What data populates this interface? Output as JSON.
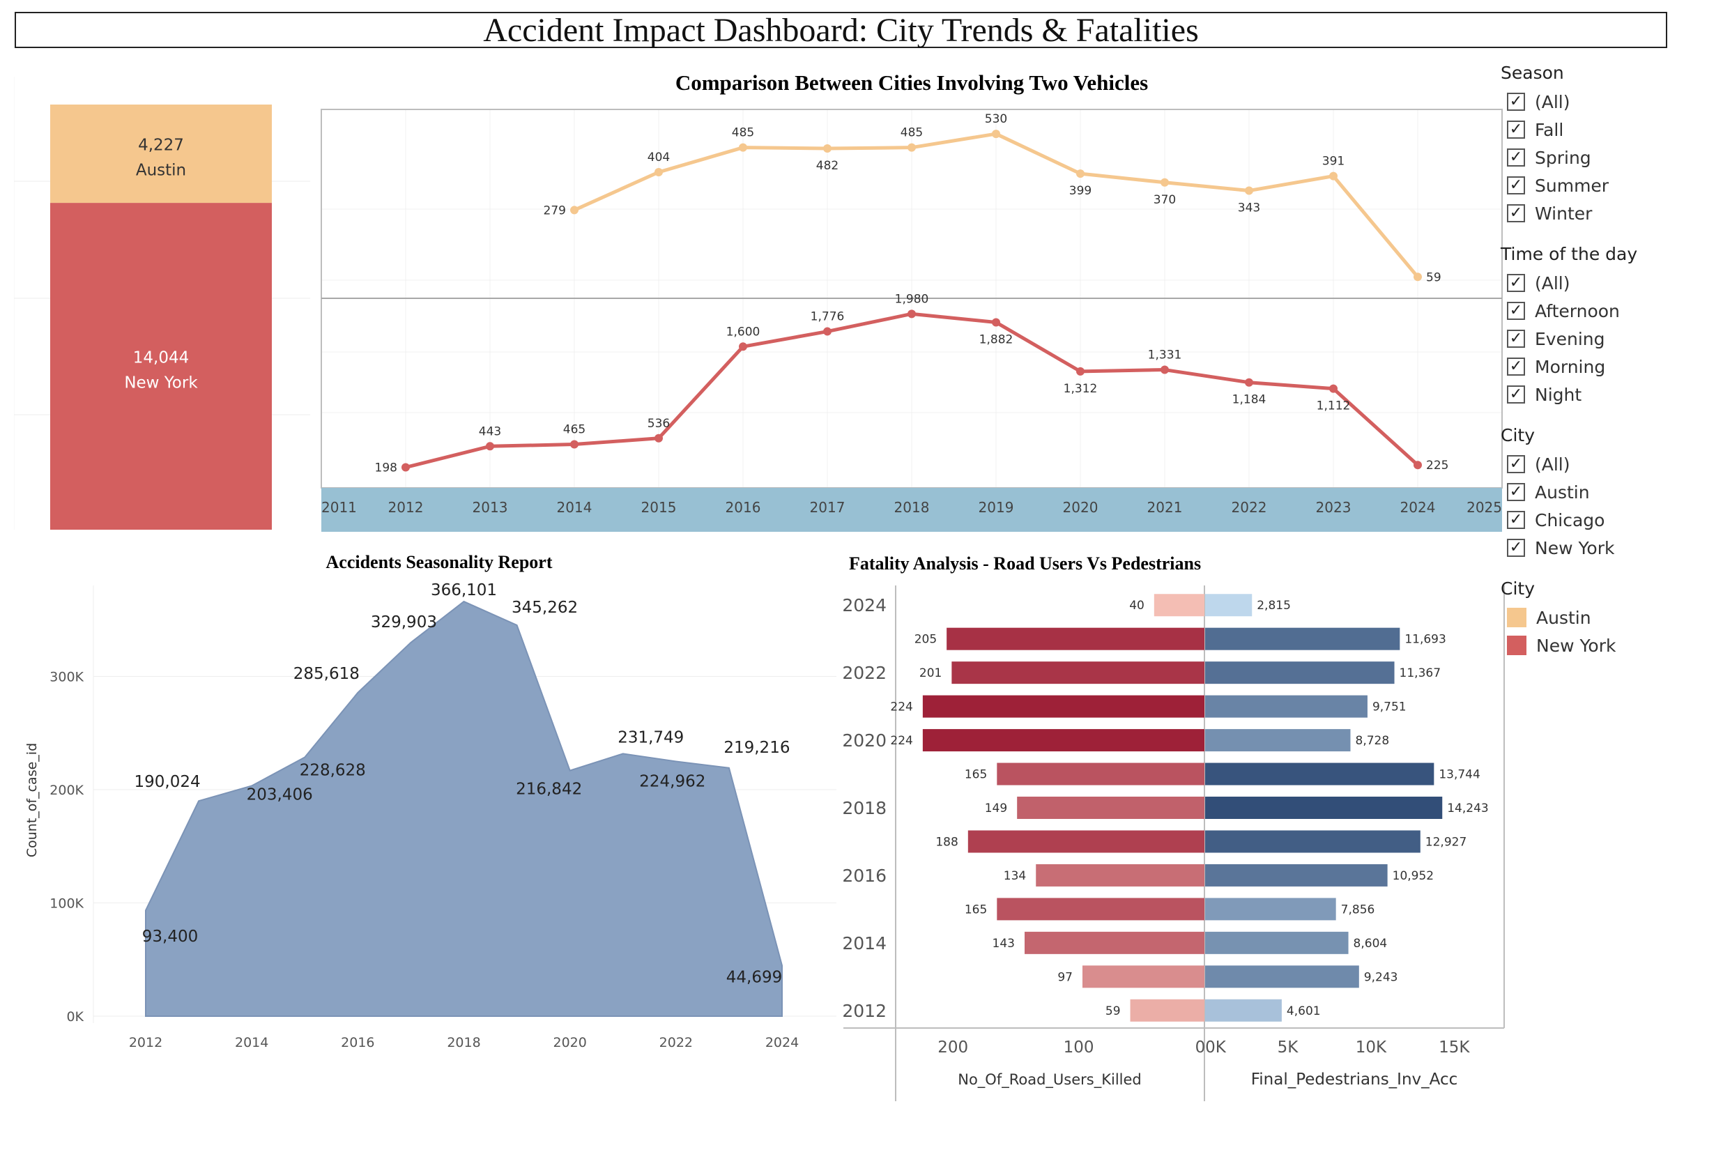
{
  "dashboard_title": "Accident Impact Dashboard: City Trends & Fatalities",
  "filters": {
    "season": {
      "title": "Season",
      "items": [
        "(All)",
        "Fall",
        "Spring",
        "Summer",
        "Winter"
      ]
    },
    "time_of_day": {
      "title": "Time of the day",
      "items": [
        "(All)",
        "Afternoon",
        "Evening",
        "Morning",
        "Night"
      ]
    },
    "city": {
      "title": "City",
      "items": [
        "(All)",
        "Austin",
        "Chicago",
        "New York"
      ]
    },
    "check_glyph": "✓"
  },
  "legend": {
    "title": "City",
    "items": [
      {
        "label": "Austin",
        "color": "#f5c78e"
      },
      {
        "label": "New York",
        "color": "#d35f5f"
      }
    ]
  },
  "chart_data": [
    {
      "id": "city_totals",
      "type": "bar",
      "stacked": true,
      "categories": [
        "Austin",
        "New York"
      ],
      "values": [
        4227,
        14044
      ],
      "value_labels": [
        "4,227",
        "14,044"
      ],
      "colors": [
        "#f5c78e",
        "#d35f5f"
      ]
    },
    {
      "id": "two_vehicle_comparison",
      "type": "line",
      "title": "Comparison Between Cities Involving Two Vehicles",
      "x_ticks": [
        "2011",
        "2012",
        "2013",
        "2014",
        "2015",
        "2016",
        "2017",
        "2018",
        "2019",
        "2020",
        "2021",
        "2022",
        "2023",
        "2024",
        "2025"
      ],
      "xlim": [
        2011,
        2025
      ],
      "series": [
        {
          "name": "Austin",
          "color": "#f5c78e",
          "x": [
            2014,
            2015,
            2016,
            2017,
            2018,
            2019,
            2020,
            2021,
            2022,
            2023,
            2024
          ],
          "values": [
            279,
            404,
            485,
            482,
            485,
            530,
            399,
            370,
            343,
            391,
            59
          ],
          "labels": [
            "279",
            "404",
            "485",
            "482",
            "485",
            "530",
            "399",
            "370",
            "343",
            "391",
            "59"
          ]
        },
        {
          "name": "New York",
          "color": "#d35f5f",
          "x": [
            2012,
            2013,
            2014,
            2015,
            2016,
            2017,
            2018,
            2019,
            2020,
            2021,
            2022,
            2023,
            2024
          ],
          "values": [
            198,
            443,
            465,
            536,
            1600,
            1776,
            1980,
            1882,
            1312,
            1331,
            1184,
            1112,
            225
          ],
          "labels": [
            "198",
            "443",
            "465",
            "536",
            "1,600",
            "1,776",
            "1,980",
            "1,882",
            "1,312",
            "1,331",
            "1,184",
            "1,112",
            "225"
          ]
        }
      ]
    },
    {
      "id": "seasonality",
      "type": "area",
      "title": "Accidents Seasonality Report",
      "ylabel": "Count_of_case_id",
      "ylim": [
        0,
        366101
      ],
      "y_ticks": [
        {
          "v": 0,
          "label": "0K"
        },
        {
          "v": 100000,
          "label": "100K"
        },
        {
          "v": 200000,
          "label": "200K"
        },
        {
          "v": 300000,
          "label": "300K"
        }
      ],
      "x_ticks": [
        "2012",
        "2014",
        "2016",
        "2018",
        "2020",
        "2022",
        "2024"
      ],
      "x": [
        2012,
        2013,
        2014,
        2015,
        2016,
        2017,
        2018,
        2019,
        2020,
        2021,
        2022,
        2023,
        2024
      ],
      "values": [
        93400,
        190024,
        203406,
        228628,
        285618,
        329903,
        366101,
        345262,
        216842,
        231749,
        224962,
        219216,
        44699
      ],
      "labels": [
        "93,400",
        "190,024",
        "203,406",
        "228,628",
        "285,618",
        "329,903",
        "366,101",
        "345,262",
        "216,842",
        "231,749",
        "224,962",
        "219,216",
        "44,699"
      ],
      "color": "#8aa2c2"
    },
    {
      "id": "fatality_analysis",
      "type": "bar",
      "orientation": "horizontal",
      "title": "Fatality Analysis - Road Users Vs Pedestrians",
      "y_ticks": [
        "2024",
        "2022",
        "2020",
        "2018",
        "2016",
        "2014",
        "2012"
      ],
      "years": [
        2024,
        2023,
        2022,
        2021,
        2020,
        2019,
        2018,
        2017,
        2016,
        2015,
        2014,
        2013,
        2012
      ],
      "left": {
        "axis_label": "No_Of_Road_Users_Killed",
        "ticks": [
          "200",
          "100",
          "0"
        ],
        "values": [
          40,
          205,
          201,
          224,
          224,
          165,
          149,
          188,
          134,
          165,
          143,
          97,
          59
        ]
      },
      "right": {
        "axis_label": "Final_Pedestrians_Inv_Acc",
        "ticks": [
          "0K",
          "5K",
          "10K",
          "15K"
        ],
        "values": [
          2815,
          11693,
          11367,
          9751,
          8728,
          13744,
          14243,
          12927,
          10952,
          7856,
          8604,
          9243,
          4601
        ],
        "labels": [
          "2,815",
          "11,693",
          "11,367",
          "9,751",
          "8,728",
          "13,744",
          "14,243",
          "12,927",
          "10,952",
          "7,856",
          "8,604",
          "9,243",
          "4,601"
        ]
      }
    }
  ]
}
